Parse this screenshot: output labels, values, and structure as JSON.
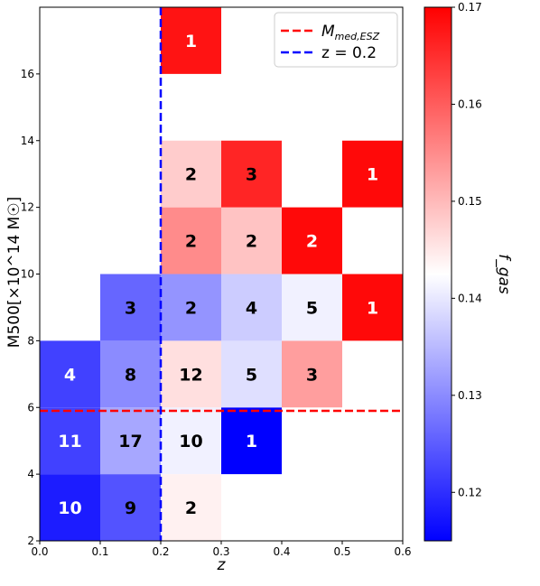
{
  "chart_data": {
    "type": "heatmap",
    "xlabel": "z",
    "ylabel": "M500[×10^14 M☉]",
    "xlim": [
      0.0,
      0.6
    ],
    "ylim": [
      2,
      18
    ],
    "x_ticks": [
      "0.0",
      "0.1",
      "0.2",
      "0.3",
      "0.4",
      "0.5",
      "0.6"
    ],
    "y_ticks": [
      "2",
      "4",
      "6",
      "8",
      "10",
      "12",
      "14",
      "16"
    ],
    "colorbar": {
      "label": "f_gas",
      "min": 0.115,
      "max": 0.17,
      "ticks": [
        "0.12",
        "0.13",
        "0.14",
        "0.15",
        "0.16",
        "0.17"
      ],
      "colormap": "bwr"
    },
    "cells": [
      {
        "z": [
          0.0,
          0.1
        ],
        "m": [
          2,
          4
        ],
        "count": 10,
        "fgas": 0.118
      },
      {
        "z": [
          0.1,
          0.2
        ],
        "m": [
          2,
          4
        ],
        "count": 9,
        "fgas": 0.124
      },
      {
        "z": [
          0.2,
          0.3
        ],
        "m": [
          2,
          4
        ],
        "count": 2,
        "fgas": 0.144
      },
      {
        "z": [
          0.0,
          0.1
        ],
        "m": [
          4,
          6
        ],
        "count": 11,
        "fgas": 0.122
      },
      {
        "z": [
          0.1,
          0.2
        ],
        "m": [
          4,
          6
        ],
        "count": 17,
        "fgas": 0.133
      },
      {
        "z": [
          0.2,
          0.3
        ],
        "m": [
          4,
          6
        ],
        "count": 10,
        "fgas": 0.141
      },
      {
        "z": [
          0.3,
          0.4
        ],
        "m": [
          4,
          6
        ],
        "count": 1,
        "fgas": 0.115
      },
      {
        "z": [
          0.0,
          0.1
        ],
        "m": [
          6,
          8
        ],
        "count": 4,
        "fgas": 0.122
      },
      {
        "z": [
          0.1,
          0.2
        ],
        "m": [
          6,
          8
        ],
        "count": 8,
        "fgas": 0.13
      },
      {
        "z": [
          0.2,
          0.3
        ],
        "m": [
          6,
          8
        ],
        "count": 12,
        "fgas": 0.146
      },
      {
        "z": [
          0.3,
          0.4
        ],
        "m": [
          6,
          8
        ],
        "count": 5,
        "fgas": 0.139
      },
      {
        "z": [
          0.4,
          0.5
        ],
        "m": [
          6,
          8
        ],
        "count": 3,
        "fgas": 0.153
      },
      {
        "z": [
          0.1,
          0.2
        ],
        "m": [
          8,
          10
        ],
        "count": 3,
        "fgas": 0.126
      },
      {
        "z": [
          0.2,
          0.3
        ],
        "m": [
          8,
          10
        ],
        "count": 2,
        "fgas": 0.131
      },
      {
        "z": [
          0.3,
          0.4
        ],
        "m": [
          8,
          10
        ],
        "count": 4,
        "fgas": 0.137
      },
      {
        "z": [
          0.4,
          0.5
        ],
        "m": [
          8,
          10
        ],
        "count": 5,
        "fgas": 0.141
      },
      {
        "z": [
          0.5,
          0.6
        ],
        "m": [
          8,
          10
        ],
        "count": 1,
        "fgas": 0.169
      },
      {
        "z": [
          0.2,
          0.3
        ],
        "m": [
          10,
          12
        ],
        "count": 2,
        "fgas": 0.155
      },
      {
        "z": [
          0.3,
          0.4
        ],
        "m": [
          10,
          12
        ],
        "count": 2,
        "fgas": 0.149
      },
      {
        "z": [
          0.4,
          0.5
        ],
        "m": [
          10,
          12
        ],
        "count": 2,
        "fgas": 0.169
      },
      {
        "z": [
          0.2,
          0.3
        ],
        "m": [
          12,
          14
        ],
        "count": 2,
        "fgas": 0.148
      },
      {
        "z": [
          0.3,
          0.4
        ],
        "m": [
          12,
          14
        ],
        "count": 3,
        "fgas": 0.166
      },
      {
        "z": [
          0.5,
          0.6
        ],
        "m": [
          12,
          14
        ],
        "count": 1,
        "fgas": 0.169
      },
      {
        "z": [
          0.2,
          0.3
        ],
        "m": [
          16,
          18
        ],
        "count": 1,
        "fgas": 0.168
      }
    ],
    "lines": [
      {
        "name": "M_med,ESZ",
        "orientation": "horizontal",
        "value": 5.9,
        "color": "#ff0000",
        "style": "dashed"
      },
      {
        "name": "z = 0.2",
        "orientation": "vertical",
        "value": 0.2,
        "color": "#0000ff",
        "style": "dashed"
      }
    ],
    "legend": {
      "placement": "top-right",
      "entries": [
        {
          "text_main": "M",
          "text_sub": "med,ESZ",
          "color": "#ff0000"
        },
        {
          "text_main": "z = 0.2",
          "text_sub": "",
          "color": "#0000ff"
        }
      ]
    }
  }
}
